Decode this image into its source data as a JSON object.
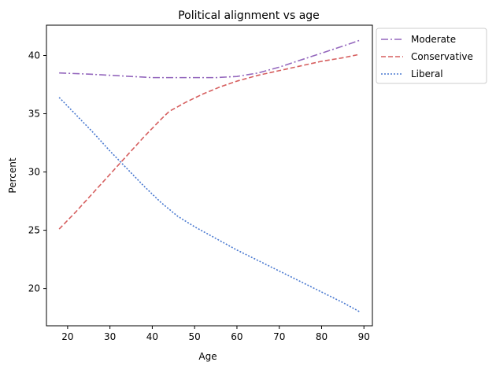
{
  "chart_data": {
    "type": "line",
    "title": "Political alignment vs age",
    "xlabel": "Age",
    "ylabel": "Percent",
    "xlim": [
      15,
      92
    ],
    "ylim": [
      16.8,
      42.6
    ],
    "xticks": [
      20,
      30,
      40,
      50,
      60,
      70,
      80,
      90
    ],
    "yticks": [
      20,
      25,
      30,
      35,
      40
    ],
    "grid": false,
    "legend_position": "outside-upper-right",
    "series": [
      {
        "name": "Moderate",
        "color": "#9467bd",
        "dash": "dashdot",
        "x": [
          18,
          25,
          30,
          35,
          40,
          45,
          50,
          55,
          60,
          65,
          70,
          75,
          80,
          85,
          89
        ],
        "y": [
          38.5,
          38.4,
          38.3,
          38.2,
          38.1,
          38.1,
          38.1,
          38.1,
          38.2,
          38.5,
          39.0,
          39.6,
          40.2,
          40.8,
          41.3
        ]
      },
      {
        "name": "Conservative",
        "color": "#d65f5f",
        "dash": "dashed",
        "x": [
          18,
          22,
          26,
          30,
          34,
          38,
          42,
          44,
          48,
          52,
          56,
          60,
          65,
          70,
          75,
          80,
          85,
          89
        ],
        "y": [
          25.1,
          26.6,
          28.2,
          29.8,
          31.4,
          33.0,
          34.5,
          35.2,
          36.0,
          36.7,
          37.3,
          37.8,
          38.3,
          38.7,
          39.1,
          39.5,
          39.8,
          40.1
        ]
      },
      {
        "name": "Liberal",
        "color": "#4878d0",
        "dash": "dotted",
        "x": [
          18,
          22,
          26,
          30,
          34,
          38,
          42,
          46,
          50,
          55,
          60,
          65,
          70,
          75,
          80,
          85,
          89
        ],
        "y": [
          36.4,
          34.9,
          33.4,
          31.8,
          30.3,
          28.8,
          27.4,
          26.2,
          25.3,
          24.3,
          23.3,
          22.4,
          21.5,
          20.6,
          19.7,
          18.8,
          18.0
        ]
      }
    ]
  }
}
